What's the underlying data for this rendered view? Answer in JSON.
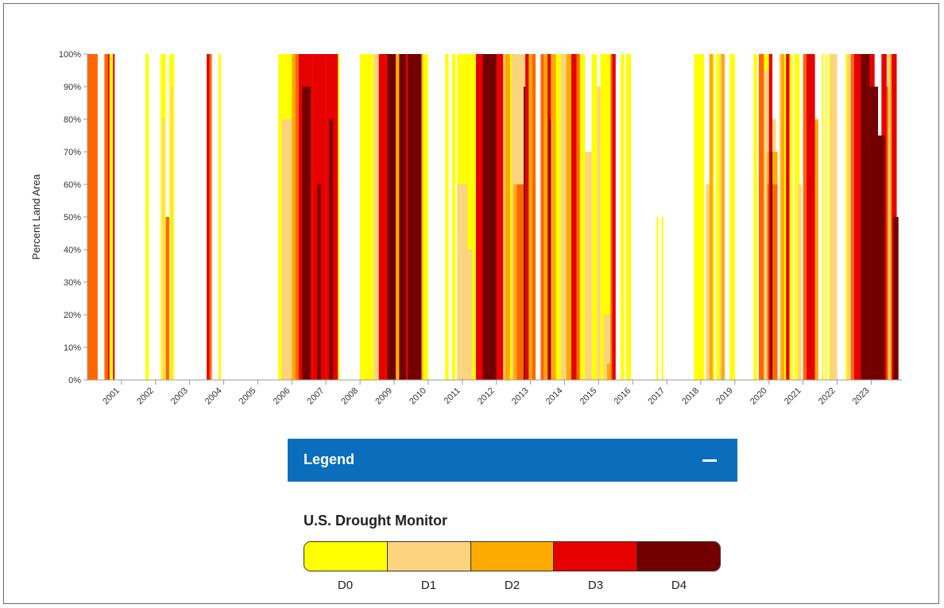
{
  "chart_data": {
    "type": "area",
    "ylabel": "Percent Land Area",
    "ylim": [
      0,
      100
    ],
    "y_ticks": [
      "0%",
      "10%",
      "20%",
      "30%",
      "40%",
      "50%",
      "60%",
      "70%",
      "80%",
      "90%",
      "100%"
    ],
    "xlim": [
      2000.0,
      2023.9
    ],
    "x_ticks": [
      "2001",
      "2002",
      "2003",
      "2004",
      "2005",
      "2006",
      "2007",
      "2008",
      "2009",
      "2010",
      "2011",
      "2012",
      "2013",
      "2014",
      "2015",
      "2016",
      "2017",
      "2018",
      "2019",
      "2020",
      "2021",
      "2022",
      "2023"
    ],
    "grid": false,
    "categories": [
      "D0",
      "D1",
      "D2",
      "D3",
      "D4"
    ],
    "colors": {
      "D0": "#ffff00",
      "D1": "#fcd37f",
      "D2": "#ffaa00",
      "D3": "#e60000",
      "D4": "#730000",
      "D1-D2": "#ff6600"
    },
    "series": [
      {
        "name": "D0",
        "values": [
          [
            2000.0,
            2000.3,
            100
          ],
          [
            2000.55,
            2000.62,
            100
          ],
          [
            2000.65,
            2000.75,
            100
          ],
          [
            2001.7,
            2001.8,
            100
          ],
          [
            2002.15,
            2002.3,
            100
          ],
          [
            2002.4,
            2002.55,
            100
          ],
          [
            2003.5,
            2003.65,
            100
          ],
          [
            2003.85,
            2003.92,
            100
          ],
          [
            2005.6,
            2006.0,
            100
          ],
          [
            2006.5,
            2006.7,
            100
          ],
          [
            2007.2,
            2007.4,
            100
          ],
          [
            2008.0,
            2008.4,
            100
          ],
          [
            2008.5,
            2008.6,
            100
          ],
          [
            2009.85,
            2010.0,
            100
          ],
          [
            2010.5,
            2010.6,
            100
          ],
          [
            2010.7,
            2010.8,
            100
          ],
          [
            2010.85,
            2011.4,
            100
          ],
          [
            2011.95,
            2012.05,
            100
          ],
          [
            2012.35,
            2012.45,
            100
          ],
          [
            2013.05,
            2013.15,
            100
          ],
          [
            2013.5,
            2013.55,
            100
          ],
          [
            2013.75,
            2013.9,
            100
          ],
          [
            2014.4,
            2014.6,
            100
          ],
          [
            2014.8,
            2014.95,
            100
          ],
          [
            2015.05,
            2015.4,
            100
          ],
          [
            2015.65,
            2015.75,
            100
          ],
          [
            2015.8,
            2015.95,
            100
          ],
          [
            2016.7,
            2016.75,
            50
          ],
          [
            2016.85,
            2016.9,
            50
          ],
          [
            2017.8,
            2018.1,
            100
          ],
          [
            2018.3,
            2018.4,
            100
          ],
          [
            2018.45,
            2018.55,
            100
          ],
          [
            2018.85,
            2019.0,
            100
          ],
          [
            2019.55,
            2019.65,
            100
          ],
          [
            2019.8,
            2020.0,
            100
          ],
          [
            2020.4,
            2020.55,
            100
          ],
          [
            2020.6,
            2020.7,
            100
          ],
          [
            2020.75,
            2020.9,
            100
          ],
          [
            2021.55,
            2021.6,
            100
          ],
          [
            2021.65,
            2021.7,
            100
          ],
          [
            2021.75,
            2021.8,
            100
          ],
          [
            2022.25,
            2022.4,
            100
          ],
          [
            2022.55,
            2022.6,
            100
          ]
        ]
      },
      {
        "name": "D1",
        "values": [
          [
            2002.2,
            2002.27,
            80
          ],
          [
            2002.45,
            2002.5,
            90
          ],
          [
            2005.7,
            2006.0,
            80
          ],
          [
            2008.4,
            2008.7,
            100
          ],
          [
            2010.85,
            2011.15,
            60
          ],
          [
            2011.15,
            2011.3,
            40
          ],
          [
            2012.05,
            2012.35,
            100
          ],
          [
            2012.45,
            2012.95,
            100
          ],
          [
            2013.9,
            2014.05,
            100
          ],
          [
            2014.6,
            2014.8,
            70
          ],
          [
            2014.95,
            2015.05,
            90
          ],
          [
            2015.15,
            2015.35,
            20
          ],
          [
            2018.15,
            2018.25,
            60
          ],
          [
            2018.55,
            2018.65,
            100
          ],
          [
            2019.85,
            2020.1,
            95
          ],
          [
            2020.1,
            2020.2,
            80
          ],
          [
            2020.3,
            2020.4,
            100
          ],
          [
            2020.85,
            2020.95,
            60
          ],
          [
            2021.8,
            2022.0,
            100
          ],
          [
            2022.3,
            2022.4,
            100
          ],
          [
            2022.55,
            2022.75,
            90
          ],
          [
            2023.4,
            2023.55,
            100
          ]
        ]
      },
      {
        "name": "D2",
        "values": [
          [
            2006.0,
            2006.1,
            100
          ],
          [
            2008.65,
            2008.85,
            100
          ],
          [
            2009.05,
            2009.25,
            100
          ],
          [
            2009.7,
            2009.85,
            100
          ],
          [
            2012.25,
            2012.4,
            100
          ],
          [
            2012.5,
            2012.6,
            60
          ],
          [
            2012.95,
            2013.1,
            100
          ],
          [
            2013.4,
            2013.5,
            100
          ],
          [
            2013.6,
            2013.75,
            100
          ],
          [
            2014.05,
            2014.3,
            100
          ],
          [
            2015.25,
            2015.35,
            5
          ],
          [
            2018.25,
            2018.35,
            100
          ],
          [
            2018.6,
            2018.7,
            100
          ],
          [
            2019.95,
            2020.25,
            70
          ],
          [
            2020.35,
            2020.45,
            100
          ],
          [
            2021.05,
            2021.15,
            100
          ],
          [
            2021.35,
            2021.45,
            80
          ],
          [
            2022.45,
            2022.55,
            100
          ],
          [
            2022.65,
            2022.75,
            50
          ],
          [
            2023.55,
            2023.65,
            100
          ]
        ]
      },
      {
        "name": "D1-D2",
        "values": [
          [
            2000.0,
            2000.3,
            100
          ],
          [
            2000.5,
            2000.6,
            100
          ],
          [
            2002.3,
            2002.4,
            50
          ],
          [
            2003.55,
            2003.65,
            100
          ],
          [
            2006.1,
            2006.2,
            100
          ],
          [
            2008.6,
            2008.7,
            90
          ],
          [
            2009.4,
            2009.55,
            100
          ],
          [
            2012.6,
            2012.8,
            60
          ],
          [
            2013.05,
            2013.15,
            100
          ],
          [
            2013.3,
            2013.4,
            100
          ],
          [
            2014.3,
            2014.45,
            100
          ],
          [
            2015.35,
            2015.45,
            100
          ],
          [
            2019.7,
            2019.85,
            100
          ],
          [
            2019.95,
            2020.25,
            60
          ],
          [
            2021.0,
            2021.1,
            100
          ],
          [
            2022.4,
            2022.5,
            100
          ],
          [
            2023.4,
            2023.5,
            90
          ]
        ]
      },
      {
        "name": "D3",
        "values": [
          [
            2000.6,
            2000.65,
            100
          ],
          [
            2000.75,
            2000.8,
            100
          ],
          [
            2003.5,
            2003.58,
            100
          ],
          [
            2006.2,
            2006.6,
            100
          ],
          [
            2006.6,
            2007.0,
            100
          ],
          [
            2007.0,
            2007.35,
            100
          ],
          [
            2008.55,
            2008.75,
            100
          ],
          [
            2008.75,
            2008.9,
            100
          ],
          [
            2009.25,
            2009.4,
            100
          ],
          [
            2011.4,
            2011.6,
            100
          ],
          [
            2012.0,
            2012.2,
            100
          ],
          [
            2012.85,
            2012.95,
            100
          ],
          [
            2013.5,
            2013.6,
            100
          ],
          [
            2014.2,
            2014.35,
            100
          ],
          [
            2015.4,
            2015.5,
            100
          ],
          [
            2020.0,
            2020.1,
            100
          ],
          [
            2020.5,
            2020.6,
            100
          ],
          [
            2021.1,
            2021.35,
            100
          ],
          [
            2022.5,
            2022.7,
            100
          ],
          [
            2022.9,
            2023.1,
            100
          ],
          [
            2023.3,
            2023.45,
            100
          ],
          [
            2023.6,
            2023.75,
            100
          ]
        ]
      },
      {
        "name": "D4",
        "values": [
          [
            2006.3,
            2006.55,
            90
          ],
          [
            2006.75,
            2006.85,
            60
          ],
          [
            2007.1,
            2007.2,
            80
          ],
          [
            2008.8,
            2009.05,
            100
          ],
          [
            2009.15,
            2009.35,
            100
          ],
          [
            2009.4,
            2009.8,
            100
          ],
          [
            2011.6,
            2012.0,
            100
          ],
          [
            2012.8,
            2012.85,
            90
          ],
          [
            2013.55,
            2013.6,
            80
          ],
          [
            2020.05,
            2020.1,
            70
          ],
          [
            2022.7,
            2022.95,
            100
          ],
          [
            2022.95,
            2023.2,
            90
          ],
          [
            2023.2,
            2023.4,
            75
          ],
          [
            2023.65,
            2023.8,
            50
          ]
        ]
      }
    ]
  },
  "legend": {
    "title": "Legend",
    "toggle_symbol": "minus-icon",
    "monitor_title": "U.S. Drought Monitor",
    "scale": [
      {
        "label": "D0",
        "color": "#ffff00"
      },
      {
        "label": "D1",
        "color": "#fcd37f"
      },
      {
        "label": "D2",
        "color": "#ffaa00"
      },
      {
        "label": "D3",
        "color": "#e60000"
      },
      {
        "label": "D4",
        "color": "#730000"
      }
    ]
  }
}
